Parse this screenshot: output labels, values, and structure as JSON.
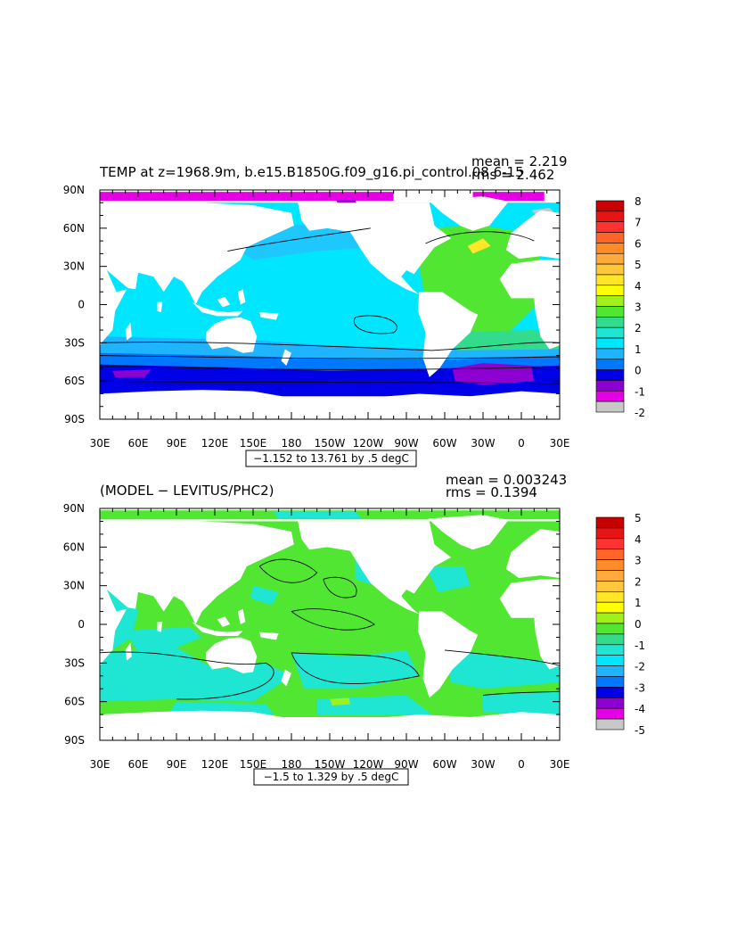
{
  "colorbar_colors": [
    "#c80000",
    "#e61414",
    "#ff3232",
    "#ff6428",
    "#ff8c28",
    "#ffaa3c",
    "#ffc83c",
    "#ffe628",
    "#ffff00",
    "#a0f01e",
    "#50e632",
    "#32dc8c",
    "#1ee6d2",
    "#00e6ff",
    "#1eb4ff",
    "#0078ff",
    "#0000e6",
    "#8c00d2",
    "#e600e6",
    "#c8c8c8"
  ],
  "panels": [
    {
      "title": "TEMP at z=1968.9m, b.e15.B1850G.f09_g16.pi_control.08 6-15",
      "mean": "mean = 2.219",
      "rms": "rms = 2.462",
      "range": "−1.152 to 13.761 by .5 degC",
      "lat_labels": [
        "90N",
        "60N",
        "30N",
        "0",
        "30S",
        "60S",
        "90S"
      ],
      "lon_labels": [
        "30E",
        "60E",
        "90E",
        "120E",
        "150E",
        "180",
        "150W",
        "120W",
        "90W",
        "60W",
        "30W",
        "0",
        "30E"
      ],
      "colorbar_levels": [
        8,
        7,
        6,
        5,
        4,
        3,
        2,
        1,
        0,
        -1,
        -2
      ]
    },
    {
      "title": "(MODEL − LEVITUS/PHC2)",
      "mean": "mean = 0.003243",
      "rms": "rms = 0.1394",
      "range": "−1.5 to 1.329 by .5 degC",
      "lat_labels": [
        "90N",
        "60N",
        "30N",
        "0",
        "30S",
        "60S",
        "90S"
      ],
      "lon_labels": [
        "30E",
        "60E",
        "90E",
        "120E",
        "150E",
        "180",
        "150W",
        "120W",
        "90W",
        "60W",
        "30W",
        "0",
        "30E"
      ],
      "colorbar_levels": [
        5,
        4,
        3,
        2,
        1,
        0,
        -1,
        -2,
        -3,
        -4,
        -5
      ]
    }
  ]
}
